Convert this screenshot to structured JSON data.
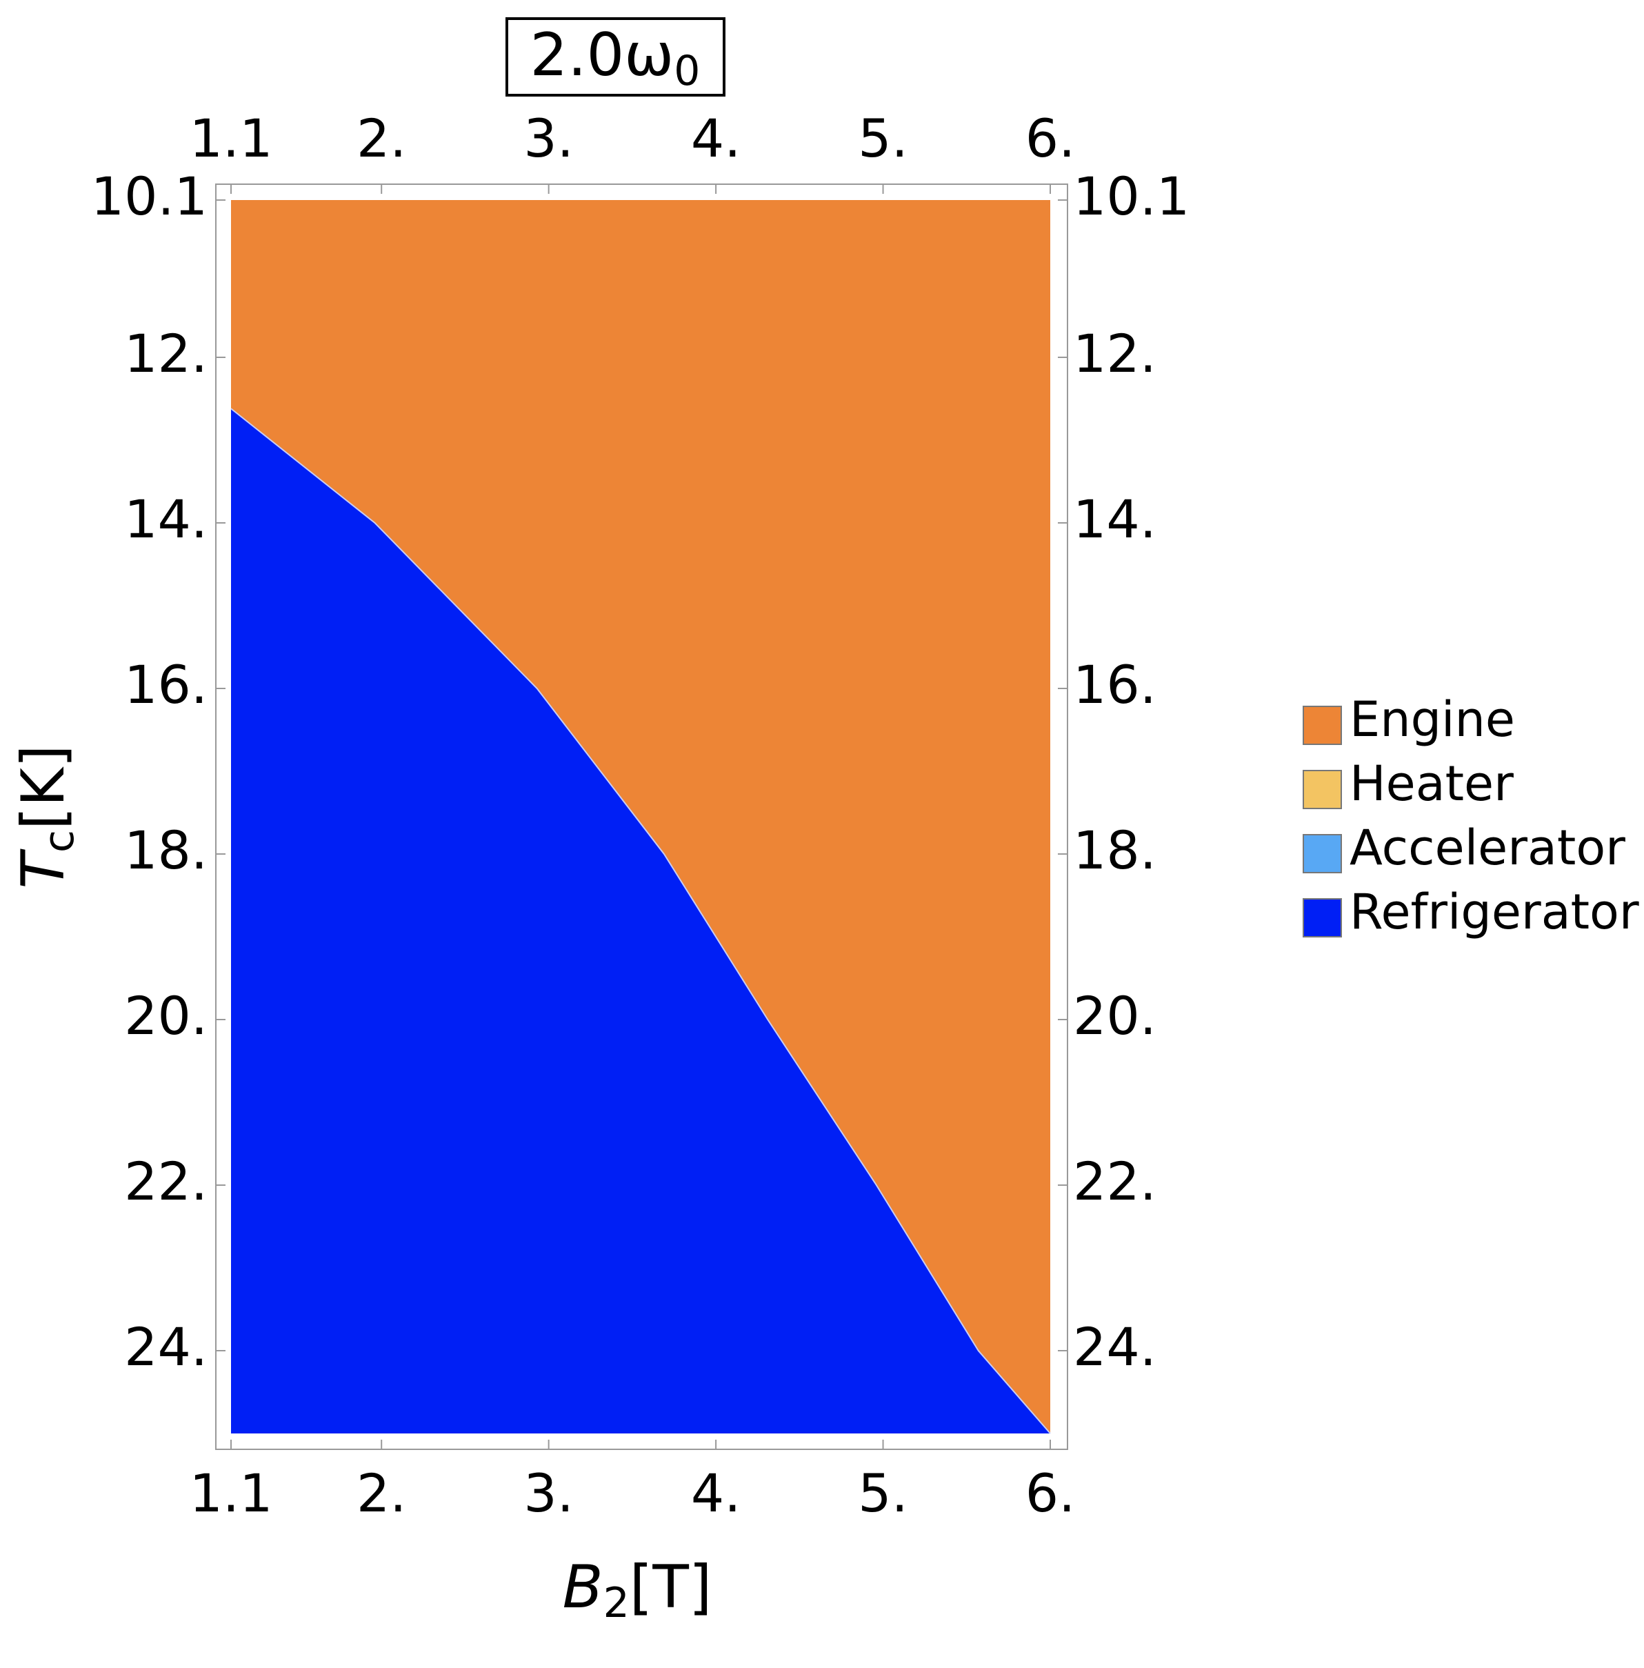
{
  "chart_data": {
    "type": "region",
    "title": {
      "text": "2.0ω",
      "sub": "0"
    },
    "xlabel": {
      "text": "B",
      "sub": "2",
      "unit": "[T]"
    },
    "ylabel": {
      "text": "T",
      "sub": "c",
      "unit": "[K]"
    },
    "xlim": [
      1.1,
      6
    ],
    "ylim": [
      10.1,
      25
    ],
    "y_reversed": true,
    "xticks": [
      1.1,
      {
        "value": 2,
        "label": "2."
      },
      {
        "value": 3,
        "label": "3."
      },
      {
        "value": 4,
        "label": "4."
      },
      {
        "value": 5,
        "label": "5."
      },
      {
        "value": 6,
        "label": "6."
      }
    ],
    "yticks": [
      10.1,
      {
        "value": 12,
        "label": "12."
      },
      {
        "value": 14,
        "label": "14."
      },
      {
        "value": 16,
        "label": "16."
      },
      {
        "value": 18,
        "label": "18."
      },
      {
        "value": 20,
        "label": "20."
      },
      {
        "value": 22,
        "label": "22."
      },
      {
        "value": 24,
        "label": "24."
      }
    ],
    "boundary": {
      "x": [
        1.1,
        1.96,
        2.93,
        3.69,
        4.31,
        4.96,
        5.57,
        6
      ],
      "y": [
        12.62,
        14,
        16,
        18,
        20,
        22,
        24,
        25
      ]
    },
    "series": [
      {
        "name": "Engine",
        "color": "#ed8536",
        "region": "above"
      },
      {
        "name": "Heater",
        "color": "#f3c462"
      },
      {
        "name": "Accelerator",
        "color": "#58a8f4"
      },
      {
        "name": "Refrigerator",
        "color": "#001ff5",
        "region": "below"
      }
    ]
  }
}
